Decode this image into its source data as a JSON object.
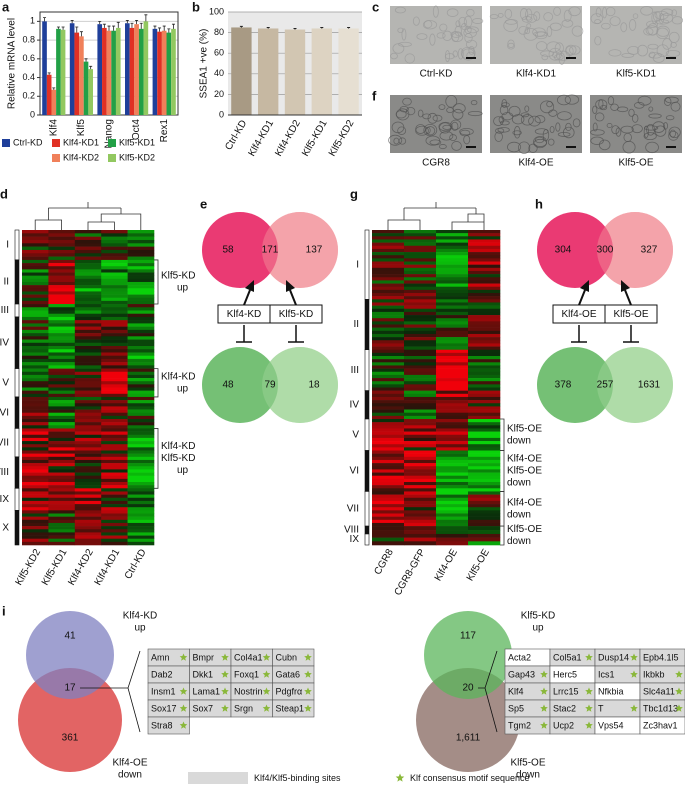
{
  "chart_data": [
    {
      "type": "bar",
      "label": "a",
      "ylabel": "Relative mRNA level",
      "categories": [
        "Klf4",
        "Klf5",
        "Nanog",
        "Oct4",
        "Rex1"
      ],
      "series": [
        {
          "name": "Ctrl-KD",
          "color": "#1f3f9a",
          "values": [
            1.0,
            0.98,
            0.97,
            0.98,
            0.92
          ],
          "errors": [
            0.04,
            0.03,
            0.03,
            0.03,
            0.03
          ]
        },
        {
          "name": "Klf4-KD1",
          "color": "#e03024",
          "values": [
            0.43,
            0.88,
            0.93,
            0.93,
            0.89
          ],
          "errors": [
            0.02,
            0.06,
            0.04,
            0.05,
            0.04
          ]
        },
        {
          "name": "Klf4-KD2",
          "color": "#f0805a",
          "values": [
            0.27,
            0.84,
            0.9,
            0.97,
            0.9
          ],
          "errors": [
            0.02,
            0.05,
            0.05,
            0.04,
            0.05
          ]
        },
        {
          "name": "Klf5-KD1",
          "color": "#22a046",
          "values": [
            0.92,
            0.57,
            0.9,
            0.92,
            0.88
          ],
          "errors": [
            0.02,
            0.03,
            0.05,
            0.06,
            0.04
          ]
        },
        {
          "name": "Klf5-KD2",
          "color": "#92c860",
          "values": [
            0.91,
            0.49,
            0.93,
            1.0,
            0.92
          ],
          "errors": [
            0.03,
            0.03,
            0.06,
            0.07,
            0.05
          ]
        }
      ],
      "ylim": [
        0,
        1.1
      ],
      "yticks": [
        0,
        0.2,
        0.4,
        0.6,
        0.8,
        1
      ],
      "grid": true
    },
    {
      "type": "bar",
      "label": "b",
      "ylabel": "SSEA1 +ve (%)",
      "categories": [
        "Ctrl-KD",
        "Klf4-KD1",
        "Klf4-KD2",
        "Klf5-KD1",
        "Klf5-KD2"
      ],
      "values": [
        85,
        84,
        83,
        84,
        84
      ],
      "errors": [
        1,
        1,
        1,
        1,
        1
      ],
      "colors": [
        "#a89a84",
        "#c6b8a2",
        "#d2c6b2",
        "#ddd3c2",
        "#e6dfd2"
      ],
      "ylim": [
        0,
        100
      ],
      "yticks": [
        0,
        20,
        40,
        60,
        80,
        100
      ],
      "grid": true,
      "background": "#e9e9e9"
    }
  ],
  "images": {
    "c": {
      "label": "c",
      "captions": [
        "Ctrl-KD",
        "Klf4-KD1",
        "Klf5-KD1"
      ]
    },
    "f": {
      "label": "f",
      "captions": [
        "CGR8",
        "Klf4-OE",
        "Klf5-OE"
      ]
    }
  },
  "heatmap_d": {
    "label": "d",
    "clusters": [
      "I",
      "II",
      "III",
      "IV",
      "V",
      "VI",
      "VII",
      "VIII",
      "IX",
      "X"
    ],
    "columns": [
      "Klf5-KD2",
      "Klf5-KD1",
      "Klf4-KD2",
      "Klf4-KD1",
      "Ctrl-KD"
    ],
    "annotations": [
      [
        "Klf5-KD",
        "up"
      ],
      [
        "Klf4-KD",
        "up"
      ],
      [
        "Klf4-KD",
        "Klf5-KD",
        "up"
      ]
    ]
  },
  "venn_e": {
    "label": "e",
    "up": [
      "58",
      "171",
      "137"
    ],
    "down": [
      "48",
      "79",
      "18"
    ],
    "boxes": [
      "Klf4-KD",
      "Klf5-KD"
    ]
  },
  "heatmap_g": {
    "label": "g",
    "clusters": [
      "I",
      "II",
      "III",
      "IV",
      "V",
      "VI",
      "VII",
      "VIII",
      "IX"
    ],
    "columns": [
      "CGR8",
      "CGR8-GFP",
      "Klf4-OE",
      "Klf5-OE"
    ],
    "annotations": [
      [
        "Klf5-OE",
        "down"
      ],
      [
        "Klf4-OE",
        "Klf5-OE",
        "down"
      ],
      [
        "Klf4-OE",
        "down"
      ],
      [
        "Klf5-OE",
        "down"
      ]
    ]
  },
  "venn_h": {
    "label": "h",
    "up": [
      "304",
      "300",
      "327"
    ],
    "down": [
      "378",
      "257",
      "1631"
    ],
    "boxes": [
      "Klf4-OE",
      "Klf5-OE"
    ]
  },
  "panel_i": {
    "label": "i",
    "left": {
      "top": [
        "Klf4-KD",
        "up"
      ],
      "top_count": "41",
      "overlap": "17",
      "bottom_count": "361",
      "bottom": [
        "Klf4-OE",
        "down"
      ],
      "genes": [
        {
          "name": "Amn",
          "motif": true,
          "binding": true
        },
        {
          "name": "Bmpr",
          "motif": true,
          "binding": true
        },
        {
          "name": "Col4a1",
          "motif": true,
          "binding": true
        },
        {
          "name": "Cubn",
          "motif": true,
          "binding": true
        },
        {
          "name": "Dab2",
          "motif": false,
          "binding": true
        },
        {
          "name": "Dkk1",
          "motif": true,
          "binding": true
        },
        {
          "name": "Foxq1",
          "motif": true,
          "binding": true
        },
        {
          "name": "Gata6",
          "motif": true,
          "binding": true
        },
        {
          "name": "Insm1",
          "motif": true,
          "binding": true
        },
        {
          "name": "Lama1",
          "motif": true,
          "binding": true
        },
        {
          "name": "Nostrin",
          "motif": true,
          "binding": true
        },
        {
          "name": "Pdgfrα",
          "motif": true,
          "binding": true
        },
        {
          "name": "Sox17",
          "motif": true,
          "binding": true
        },
        {
          "name": "Sox7",
          "motif": true,
          "binding": true
        },
        {
          "name": "Srgn",
          "motif": true,
          "binding": true
        },
        {
          "name": "Steap1",
          "motif": true,
          "binding": true
        },
        {
          "name": "Stra8",
          "motif": true,
          "binding": true
        }
      ]
    },
    "right": {
      "top": [
        "Klf5-KD",
        "up"
      ],
      "top_count": "117",
      "overlap": "20",
      "bottom_count": "1,611",
      "bottom": [
        "Klf5-OE",
        "down"
      ],
      "genes": [
        {
          "name": "Acta2",
          "motif": false,
          "binding": false
        },
        {
          "name": "Col5a1",
          "motif": true,
          "binding": true
        },
        {
          "name": "Dusp14",
          "motif": true,
          "binding": true
        },
        {
          "name": "Epb4.1l5",
          "motif": false,
          "binding": true
        },
        {
          "name": "Gap43",
          "motif": true,
          "binding": true
        },
        {
          "name": "Herc5",
          "motif": false,
          "binding": false
        },
        {
          "name": "Ics1",
          "motif": true,
          "binding": true
        },
        {
          "name": "Ikbkb",
          "motif": true,
          "binding": true
        },
        {
          "name": "Klf4",
          "motif": true,
          "binding": true
        },
        {
          "name": "Lrrc15",
          "motif": true,
          "binding": true
        },
        {
          "name": "Nfkbia",
          "motif": false,
          "binding": false
        },
        {
          "name": "Slc4a11",
          "motif": true,
          "binding": true
        },
        {
          "name": "Sp5",
          "motif": true,
          "binding": true
        },
        {
          "name": "Stac2",
          "motif": true,
          "binding": true
        },
        {
          "name": "T",
          "motif": true,
          "binding": true
        },
        {
          "name": "Tbc1d13",
          "motif": true,
          "binding": true
        },
        {
          "name": "Tgm2",
          "motif": true,
          "binding": true
        },
        {
          "name": "Ucp2",
          "motif": true,
          "binding": true
        },
        {
          "name": "Vps54",
          "motif": false,
          "binding": false
        },
        {
          "name": "Zc3hav1",
          "motif": false,
          "binding": false
        }
      ]
    }
  },
  "legend": {
    "binding": "Klf4/Klf5-binding sites",
    "motif": "Klf consensus motif sequence"
  }
}
